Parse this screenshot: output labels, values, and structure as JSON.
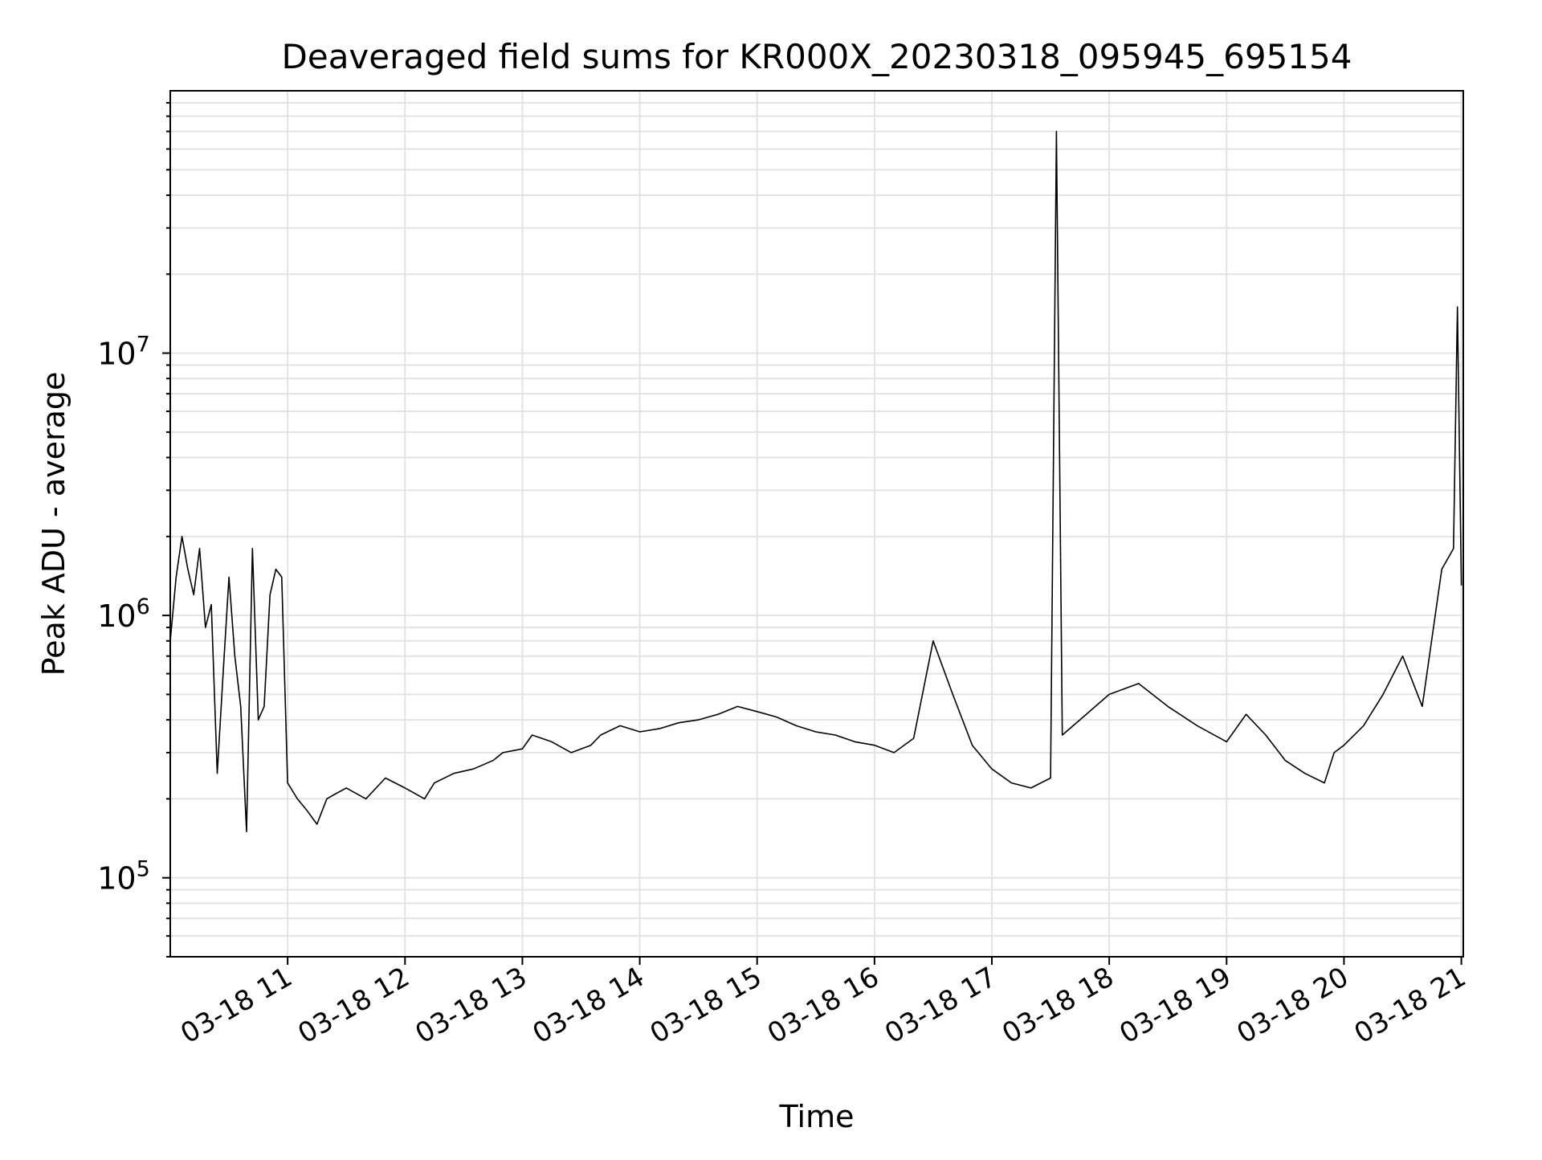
{
  "chart_data": {
    "type": "line",
    "title": "Deaveraged field sums for KR000X_20230318_095945_695154",
    "xlabel": "Time",
    "ylabel": "Peak ADU - average",
    "y_scale": "log",
    "ylim": [
      50000,
      100000000
    ],
    "xlim": [
      "2023-03-18 10:00",
      "2023-03-18 21:01"
    ],
    "grid": true,
    "x_ticks": [
      "03-18 11",
      "03-18 12",
      "03-18 13",
      "03-18 14",
      "03-18 15",
      "03-18 16",
      "03-18 17",
      "03-18 18",
      "03-18 19",
      "03-18 20",
      "03-18 21"
    ],
    "y_ticks": [
      {
        "base": "10",
        "exp": "5",
        "value": 100000
      },
      {
        "base": "10",
        "exp": "6",
        "value": 1000000
      },
      {
        "base": "10",
        "exp": "7",
        "value": 10000000
      }
    ],
    "series": [
      {
        "color": "#000000",
        "x": [
          "2023-03-18 10:00",
          "2023-03-18 10:03",
          "2023-03-18 10:06",
          "2023-03-18 10:09",
          "2023-03-18 10:12",
          "2023-03-18 10:15",
          "2023-03-18 10:18",
          "2023-03-18 10:21",
          "2023-03-18 10:24",
          "2023-03-18 10:27",
          "2023-03-18 10:30",
          "2023-03-18 10:33",
          "2023-03-18 10:36",
          "2023-03-18 10:39",
          "2023-03-18 10:42",
          "2023-03-18 10:45",
          "2023-03-18 10:48",
          "2023-03-18 10:51",
          "2023-03-18 10:54",
          "2023-03-18 10:57",
          "2023-03-18 11:00",
          "2023-03-18 11:05",
          "2023-03-18 11:10",
          "2023-03-18 11:15",
          "2023-03-18 11:20",
          "2023-03-18 11:25",
          "2023-03-18 11:30",
          "2023-03-18 11:40",
          "2023-03-18 11:50",
          "2023-03-18 12:00",
          "2023-03-18 12:10",
          "2023-03-18 12:15",
          "2023-03-18 12:25",
          "2023-03-18 12:35",
          "2023-03-18 12:45",
          "2023-03-18 12:50",
          "2023-03-18 13:00",
          "2023-03-18 13:05",
          "2023-03-18 13:15",
          "2023-03-18 13:25",
          "2023-03-18 13:35",
          "2023-03-18 13:40",
          "2023-03-18 13:50",
          "2023-03-18 14:00",
          "2023-03-18 14:10",
          "2023-03-18 14:20",
          "2023-03-18 14:30",
          "2023-03-18 14:40",
          "2023-03-18 14:50",
          "2023-03-18 15:00",
          "2023-03-18 15:10",
          "2023-03-18 15:20",
          "2023-03-18 15:30",
          "2023-03-18 15:40",
          "2023-03-18 15:50",
          "2023-03-18 16:00",
          "2023-03-18 16:10",
          "2023-03-18 16:20",
          "2023-03-18 16:30",
          "2023-03-18 16:40",
          "2023-03-18 16:50",
          "2023-03-18 17:00",
          "2023-03-18 17:10",
          "2023-03-18 17:20",
          "2023-03-18 17:30",
          "2023-03-18 17:33",
          "2023-03-18 17:36",
          "2023-03-18 17:45",
          "2023-03-18 18:00",
          "2023-03-18 18:15",
          "2023-03-18 18:30",
          "2023-03-18 18:45",
          "2023-03-18 19:00",
          "2023-03-18 19:10",
          "2023-03-18 19:20",
          "2023-03-18 19:30",
          "2023-03-18 19:40",
          "2023-03-18 19:50",
          "2023-03-18 19:55",
          "2023-03-18 20:00",
          "2023-03-18 20:10",
          "2023-03-18 20:20",
          "2023-03-18 20:30",
          "2023-03-18 20:40",
          "2023-03-18 20:50",
          "2023-03-18 20:56",
          "2023-03-18 20:58",
          "2023-03-18 21:00"
        ],
        "y": [
          800000,
          1400000,
          2000000,
          1500000,
          1200000,
          1800000,
          900000,
          1100000,
          250000,
          600000,
          1400000,
          700000,
          450000,
          150000,
          1800000,
          400000,
          450000,
          1200000,
          1500000,
          1400000,
          230000,
          200000,
          180000,
          160000,
          200000,
          210000,
          220000,
          200000,
          240000,
          220000,
          200000,
          230000,
          250000,
          260000,
          280000,
          300000,
          310000,
          350000,
          330000,
          300000,
          320000,
          350000,
          380000,
          360000,
          370000,
          390000,
          400000,
          420000,
          450000,
          430000,
          410000,
          380000,
          360000,
          350000,
          330000,
          320000,
          300000,
          340000,
          800000,
          500000,
          320000,
          260000,
          230000,
          220000,
          240000,
          70000000,
          350000,
          400000,
          500000,
          550000,
          450000,
          380000,
          330000,
          420000,
          350000,
          280000,
          250000,
          230000,
          300000,
          320000,
          380000,
          500000,
          700000,
          450000,
          1500000,
          1800000,
          15000000,
          1300000
        ]
      }
    ]
  }
}
